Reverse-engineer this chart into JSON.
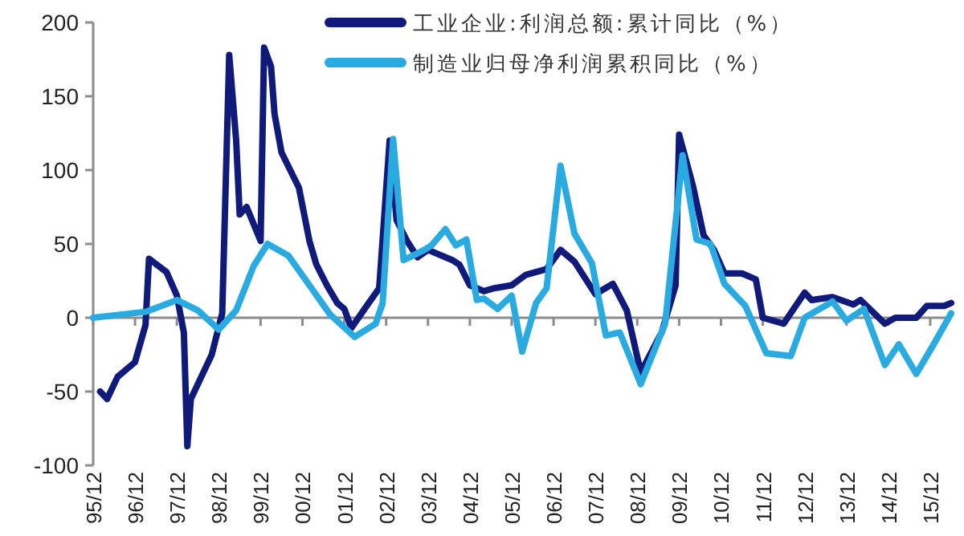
{
  "chart_data": {
    "type": "line",
    "x": [
      "1996-02",
      "1996-04",
      "1996-07",
      "1996-12",
      "1997-03",
      "1997-04",
      "1997-09",
      "1997-12",
      "1998-02",
      "1998-03",
      "1998-04",
      "1998-10",
      "1999-01",
      "1999-03",
      "1999-05",
      "1999-06",
      "1999-08",
      "1999-12",
      "2000-01",
      "2000-03",
      "2000-04",
      "2000-06",
      "2000-11",
      "2001-02",
      "2001-04",
      "2001-07",
      "2001-10",
      "2001-12",
      "2002-02",
      "2002-07",
      "2002-10",
      "2003-01",
      "2003-03",
      "2003-06",
      "2003-09",
      "2003-12",
      "2004-07",
      "2004-09",
      "2004-12",
      "2005-04",
      "2005-07",
      "2005-12",
      "2006-04",
      "2006-10",
      "2007-02",
      "2007-06",
      "2007-12",
      "2008-05",
      "2008-09",
      "2009-01",
      "2009-07",
      "2009-11",
      "2009-12",
      "2010-04",
      "2010-07",
      "2010-10",
      "2011-01",
      "2011-06",
      "2011-10",
      "2011-12",
      "2012-06",
      "2012-12",
      "2013-02",
      "2013-08",
      "2014-02",
      "2014-04",
      "2014-11",
      "2015-02",
      "2015-08",
      "2015-11",
      "2016-04",
      "2016-06"
    ],
    "series": [
      {
        "name": "工业企业:利润总额:累计同比（%）",
        "color": "#0f1a7a",
        "values": [
          -50,
          -55,
          -40,
          -30,
          -5,
          40,
          31,
          15,
          -10,
          -87,
          -55,
          -25,
          3,
          178,
          120,
          70,
          75,
          52,
          183,
          170,
          138,
          112,
          88,
          52,
          36,
          22,
          10,
          6,
          -7,
          10,
          20,
          120,
          66,
          52,
          41,
          46,
          39,
          36,
          22,
          18,
          20,
          22,
          29,
          33,
          46,
          38,
          16,
          23,
          5,
          -37,
          -10,
          22,
          124,
          89,
          56,
          46,
          30,
          30,
          26,
          0,
          -4,
          17,
          12,
          14,
          9,
          12,
          -4,
          0,
          0,
          8,
          8,
          10
        ]
      },
      {
        "name": "制造业归母净利润累积同比（%）",
        "color": "#29abe2",
        "x": [
          "1995-12",
          "1997-03",
          "1997-12",
          "1998-06",
          "1998-12",
          "1999-05",
          "1999-10",
          "2000-02",
          "2000-08",
          "2001-02",
          "2001-08",
          "2002-03",
          "2002-09",
          "2002-11",
          "2003-02",
          "2003-05",
          "2003-11",
          "2004-01",
          "2004-05",
          "2004-08",
          "2004-11",
          "2005-02",
          "2005-04",
          "2005-08",
          "2005-12",
          "2006-03",
          "2006-07",
          "2006-10",
          "2007-02",
          "2007-06",
          "2007-11",
          "2008-03",
          "2008-07",
          "2009-01",
          "2009-08",
          "2010-01",
          "2010-05",
          "2010-09",
          "2011-01",
          "2011-07",
          "2012-01",
          "2012-08",
          "2012-12",
          "2013-08",
          "2013-12",
          "2014-05",
          "2014-11",
          "2015-03",
          "2015-08",
          "2016-01",
          "2016-06"
        ],
        "values": [
          0,
          4,
          12,
          5,
          -8,
          5,
          35,
          50,
          42,
          22,
          2,
          -13,
          -4,
          10,
          121,
          39,
          46,
          49,
          60,
          49,
          53,
          12,
          13,
          6,
          15,
          -23,
          10,
          20,
          103,
          57,
          37,
          -12,
          -10,
          -45,
          -4,
          110,
          53,
          50,
          23,
          8,
          -24,
          -26,
          0,
          11,
          -2,
          6,
          -32,
          -18,
          -38,
          -18,
          3
        ]
      }
    ],
    "xlim": [
      "1995-12",
      "2016-06"
    ],
    "xticks": [
      {
        "value": "1995-12",
        "label": "95/12"
      },
      {
        "value": "1996-12",
        "label": "96/12"
      },
      {
        "value": "1997-12",
        "label": "97/12"
      },
      {
        "value": "1998-12",
        "label": "98/12"
      },
      {
        "value": "1999-12",
        "label": "99/12"
      },
      {
        "value": "2000-12",
        "label": "00/12"
      },
      {
        "value": "2001-12",
        "label": "01/12"
      },
      {
        "value": "2002-12",
        "label": "02/12"
      },
      {
        "value": "2003-12",
        "label": "03/12"
      },
      {
        "value": "2004-12",
        "label": "04/12"
      },
      {
        "value": "2005-12",
        "label": "05/12"
      },
      {
        "value": "2006-12",
        "label": "06/12"
      },
      {
        "value": "2007-12",
        "label": "07/12"
      },
      {
        "value": "2008-12",
        "label": "08/12"
      },
      {
        "value": "2009-12",
        "label": "09/12"
      },
      {
        "value": "2010-12",
        "label": "10/12"
      },
      {
        "value": "2011-12",
        "label": "11/12"
      },
      {
        "value": "2012-12",
        "label": "12/12"
      },
      {
        "value": "2013-12",
        "label": "13/12"
      },
      {
        "value": "2014-12",
        "label": "14/12"
      },
      {
        "value": "2015-12",
        "label": "15/12"
      }
    ],
    "ylim": [
      -100,
      200
    ],
    "yticks": [
      -100,
      -50,
      0,
      50,
      100,
      150,
      200
    ],
    "legend": "top",
    "line_style": "solid",
    "marker": "none"
  }
}
